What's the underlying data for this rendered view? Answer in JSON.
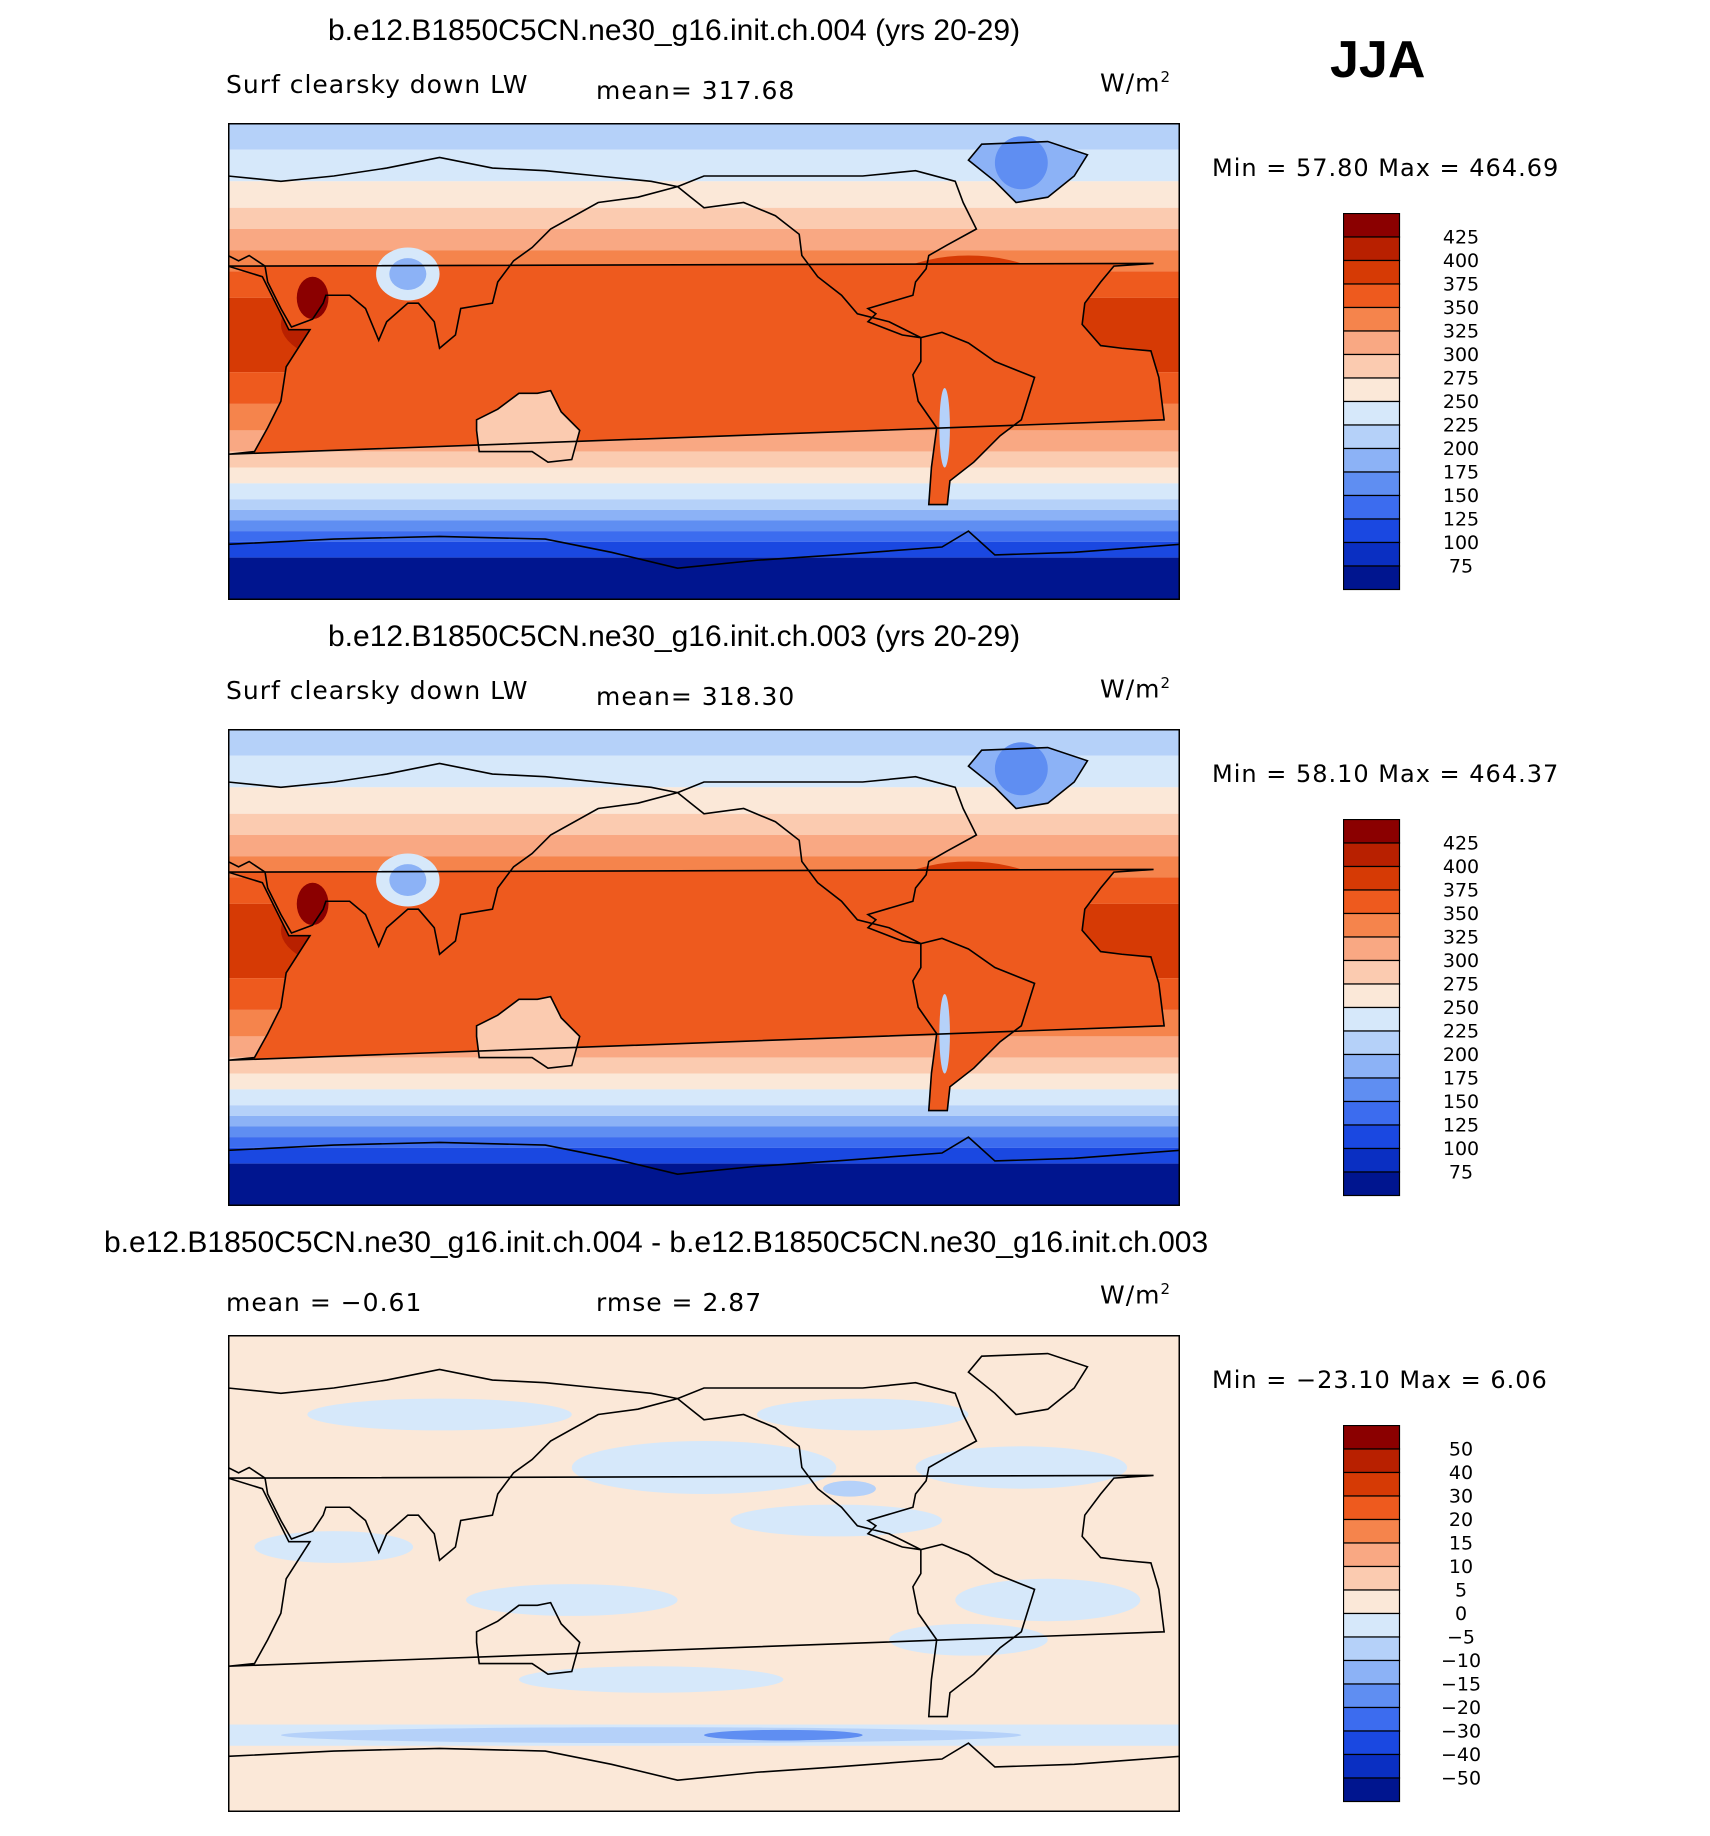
{
  "season": "JJA",
  "chart_data": [
    {
      "type": "heatmap",
      "title": "b.e12.B1850C5CN.ne30_g16.init.ch.004 (yrs 20-29)",
      "left_label": "Surf clearsky down LW",
      "center_label": "mean= 317.68",
      "units": "W/m",
      "units_sup": "2",
      "minmax": "Min =   57.80 Max = 464.69",
      "colorbar_levels": [
        "425",
        "400",
        "375",
        "350",
        "325",
        "300",
        "275",
        "250",
        "225",
        "200",
        "175",
        "150",
        "125",
        "100",
        "75"
      ],
      "colors": [
        "#8b0000",
        "#b82000",
        "#d63a05",
        "#ee5a1e",
        "#f5844c",
        "#f9a883",
        "#fbcbb0",
        "#fbe8d8",
        "#d6e8fa",
        "#b5d1f9",
        "#8cb2f6",
        "#5f8ef2",
        "#3c6cef",
        "#1a48e1",
        "#0a2fc2",
        "#00158f"
      ]
    },
    {
      "type": "heatmap",
      "title": "b.e12.B1850C5CN.ne30_g16.init.ch.003 (yrs 20-29)",
      "left_label": "Surf clearsky down LW",
      "center_label": "mean= 318.30",
      "units": "W/m",
      "units_sup": "2",
      "minmax": "Min =   58.10 Max = 464.37",
      "colorbar_levels": [
        "425",
        "400",
        "375",
        "350",
        "325",
        "300",
        "275",
        "250",
        "225",
        "200",
        "175",
        "150",
        "125",
        "100",
        "75"
      ],
      "colors": [
        "#8b0000",
        "#b82000",
        "#d63a05",
        "#ee5a1e",
        "#f5844c",
        "#f9a883",
        "#fbcbb0",
        "#fbe8d8",
        "#d6e8fa",
        "#b5d1f9",
        "#8cb2f6",
        "#5f8ef2",
        "#3c6cef",
        "#1a48e1",
        "#0a2fc2",
        "#00158f"
      ]
    },
    {
      "type": "heatmap",
      "title": "b.e12.B1850C5CN.ne30_g16.init.ch.004 - b.e12.B1850C5CN.ne30_g16.init.ch.003",
      "left_label": "mean =   −0.61",
      "center_label": "rmse =    2.87",
      "units": "W/m",
      "units_sup": "2",
      "minmax": "Min = −23.10 Max =    6.06",
      "colorbar_levels": [
        "50",
        "40",
        "30",
        "20",
        "15",
        "10",
        "5",
        "0",
        "−5",
        "−10",
        "−15",
        "−20",
        "−30",
        "−40",
        "−50"
      ],
      "colors": [
        "#8b0000",
        "#b82000",
        "#d63a05",
        "#ee5a1e",
        "#f5844c",
        "#f9a883",
        "#fbcbb0",
        "#fbe8d8",
        "#d6e8fa",
        "#b5d1f9",
        "#8cb2f6",
        "#5f8ef2",
        "#3c6cef",
        "#1a48e1",
        "#0a2fc2",
        "#00158f"
      ]
    }
  ]
}
